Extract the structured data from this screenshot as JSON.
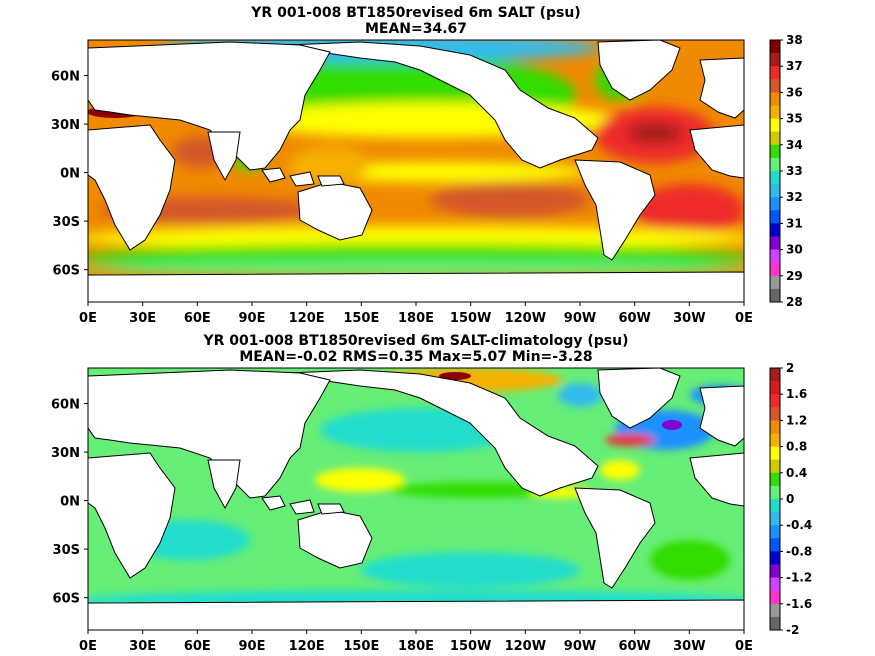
{
  "chart_data": [
    {
      "type": "heatmap",
      "title": "YR 001-008 BT1850revised 6m SALT (psu)",
      "subtitle": "MEAN=34.67",
      "x_ticks": [
        "0E",
        "30E",
        "60E",
        "90E",
        "120E",
        "150E",
        "180E",
        "150W",
        "120W",
        "90W",
        "60W",
        "30W",
        "0E"
      ],
      "y_ticks": [
        "60N",
        "30N",
        "0N",
        "30S",
        "60S"
      ],
      "colorbar": {
        "ticks": [
          "38",
          "37",
          "36",
          "35",
          "34",
          "33",
          "32",
          "31",
          "30",
          "29",
          "28"
        ],
        "colors": [
          "#7f0000",
          "#a51c1c",
          "#ee2a2a",
          "#d4582a",
          "#f08a00",
          "#f5b000",
          "#ffff00",
          "#cccc00",
          "#33dd00",
          "#66ee77",
          "#22ddcc",
          "#33bbee",
          "#1e90ff",
          "#0055ff",
          "#0000cc",
          "#8000d0",
          "#cc44ff",
          "#ff33cc",
          "#999999",
          "#666666"
        ]
      },
      "colors": {
        "ocean_base": "#f08a00",
        "subtropical_max": "#d4582a",
        "high_salinity": "#ee2a2a",
        "red_sea": "#8b0000",
        "subpolar": "#33dd00",
        "antarctic": "#66ee77",
        "arctic": "#33bbee",
        "low_salinity": "#8000d0",
        "land": "#ffffff"
      }
    },
    {
      "type": "heatmap",
      "title": "YR 001-008 BT1850revised 6m SALT-climatology (psu)",
      "subtitle": "MEAN=-0.02   RMS=0.35   Max=5.07   Min=-3.28",
      "x_ticks": [
        "0E",
        "30E",
        "60E",
        "90E",
        "120E",
        "150E",
        "180E",
        "150W",
        "120W",
        "90W",
        "60W",
        "30W",
        "0E"
      ],
      "y_ticks": [
        "60N",
        "30N",
        "0N",
        "30S",
        "60S"
      ],
      "colorbar": {
        "ticks": [
          "2",
          "1.6",
          "1.2",
          "0.8",
          "0.4",
          "0",
          "-0.4",
          "-0.8",
          "-1.2",
          "-1.6",
          "-2"
        ],
        "colors": [
          "#a51c1c",
          "#d41c1c",
          "#ee2a2a",
          "#d4582a",
          "#f08a00",
          "#f5b000",
          "#ffff00",
          "#cccc00",
          "#33dd00",
          "#66ee77",
          "#22ddcc",
          "#33bbee",
          "#1e90ff",
          "#0055ff",
          "#0000cc",
          "#8000d0",
          "#cc44ff",
          "#ff33cc",
          "#999999",
          "#666666"
        ]
      },
      "colors": {
        "ocean_base": "#66ee77",
        "positive_bias": "#33dd00",
        "strong_positive": "#ffff00",
        "extreme_positive": "#ee2a2a",
        "negative_bias": "#22ddcc",
        "strong_negative": "#1e90ff",
        "land": "#ffffff"
      }
    }
  ]
}
